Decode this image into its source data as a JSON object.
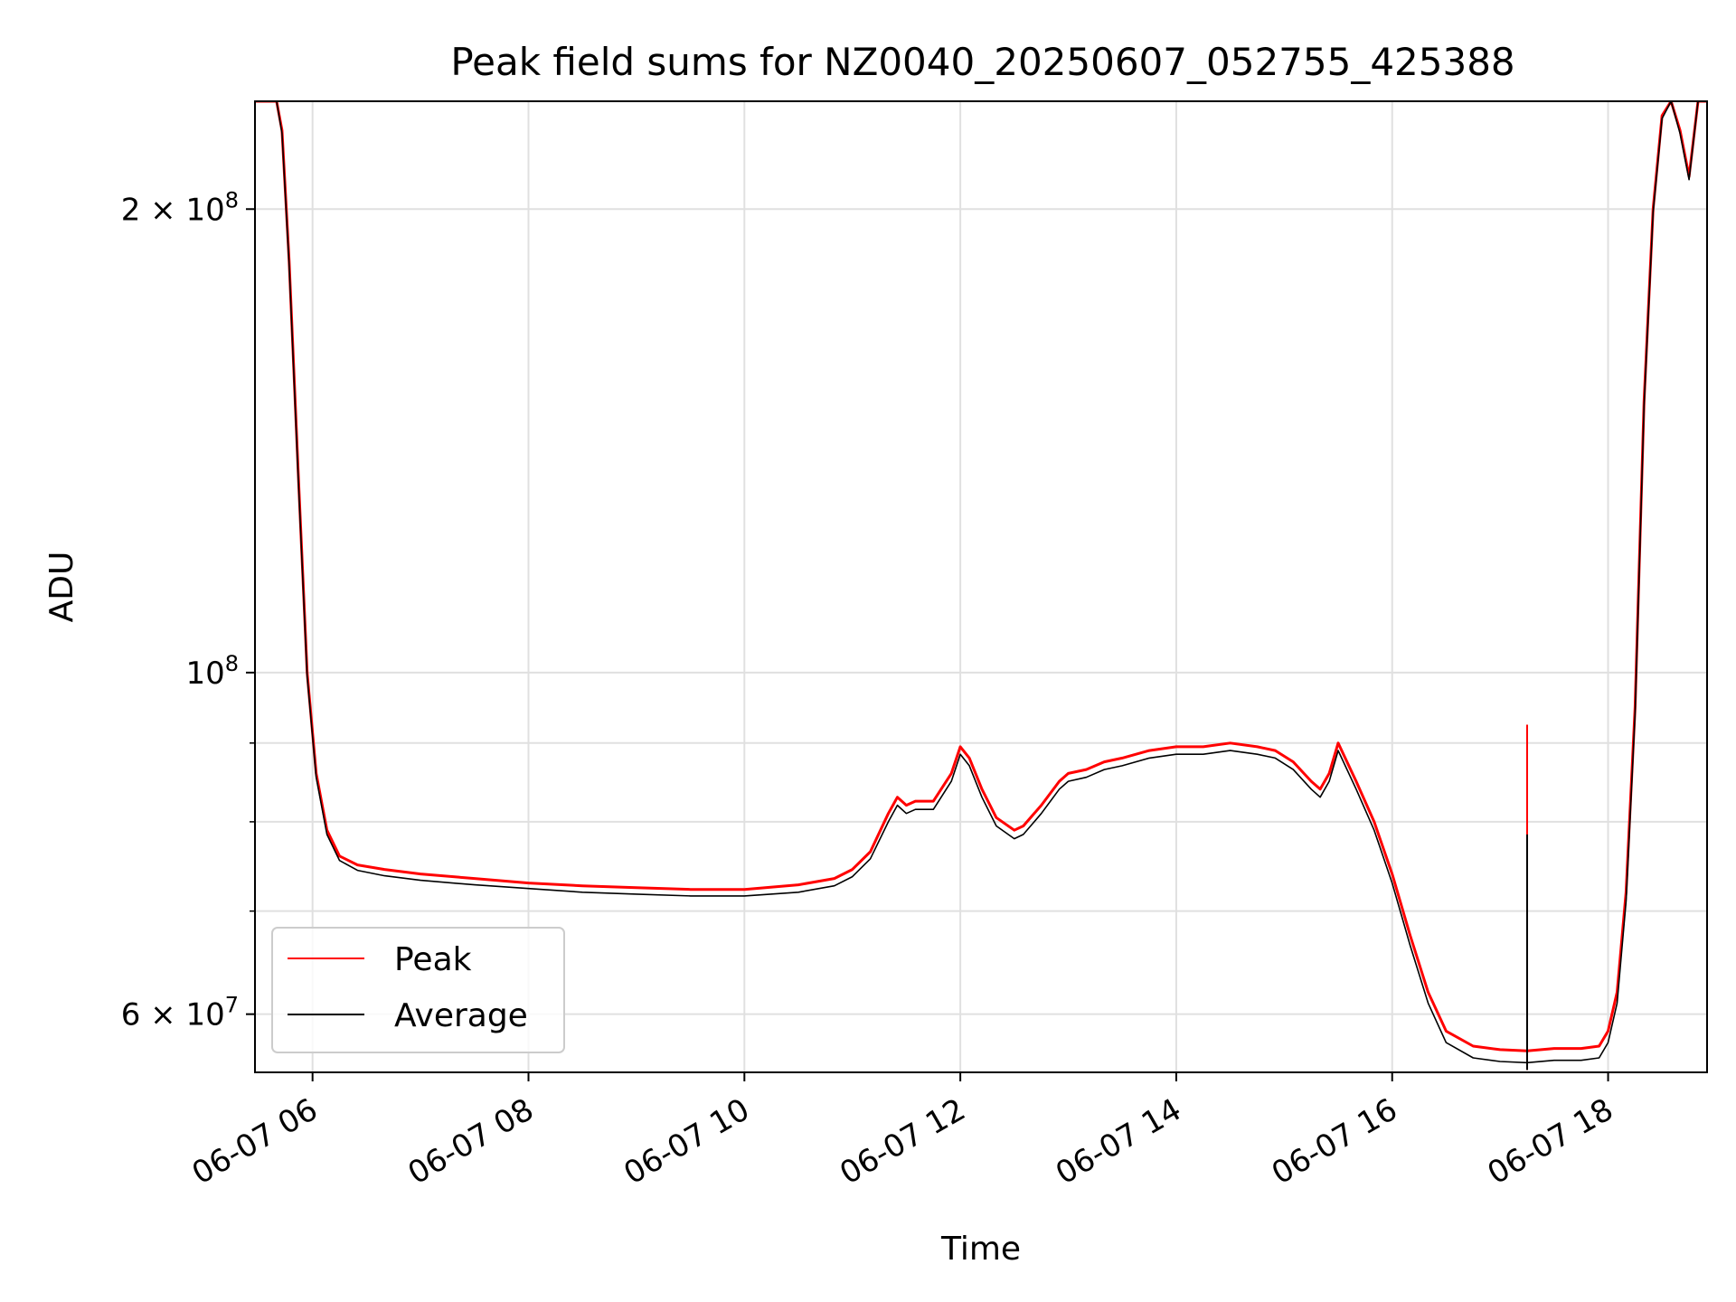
{
  "chart_data": {
    "type": "line",
    "title": "Peak field sums for NZ0040_20250607_052755_425388",
    "xlabel": "Time",
    "ylabel": "ADU",
    "x_tick_labels": [
      "06-07 06",
      "06-07 08",
      "06-07 10",
      "06-07 12",
      "06-07 14",
      "06-07 16",
      "06-07 18"
    ],
    "y_tick_labels": [
      {
        "value": 200000000,
        "base": "2 × 10",
        "exp": "8"
      },
      {
        "value": 100000000,
        "base": "10",
        "exp": "8"
      },
      {
        "value": 60000000,
        "base": "6 × 10",
        "exp": "7"
      }
    ],
    "x_range": [
      "2025-06-07 05:28",
      "2025-06-07 18:55"
    ],
    "y_range": [
      55000000,
      235000000
    ],
    "y_scale": "log",
    "grid": true,
    "legend_position": "lower left",
    "series": [
      {
        "name": "Peak",
        "color": "#ff0000",
        "x": [
          "2025-06-07 05:28",
          "2025-06-07 05:40",
          "2025-06-07 05:43",
          "2025-06-07 05:47",
          "2025-06-07 05:52",
          "2025-06-07 05:57",
          "2025-06-07 06:02",
          "2025-06-07 06:08",
          "2025-06-07 06:15",
          "2025-06-07 06:25",
          "2025-06-07 06:40",
          "2025-06-07 07:00",
          "2025-06-07 07:30",
          "2025-06-07 08:00",
          "2025-06-07 08:30",
          "2025-06-07 09:00",
          "2025-06-07 09:30",
          "2025-06-07 10:00",
          "2025-06-07 10:30",
          "2025-06-07 10:50",
          "2025-06-07 11:00",
          "2025-06-07 11:10",
          "2025-06-07 11:20",
          "2025-06-07 11:25",
          "2025-06-07 11:30",
          "2025-06-07 11:35",
          "2025-06-07 11:45",
          "2025-06-07 11:55",
          "2025-06-07 12:00",
          "2025-06-07 12:05",
          "2025-06-07 12:12",
          "2025-06-07 12:20",
          "2025-06-07 12:30",
          "2025-06-07 12:35",
          "2025-06-07 12:45",
          "2025-06-07 12:55",
          "2025-06-07 13:00",
          "2025-06-07 13:10",
          "2025-06-07 13:20",
          "2025-06-07 13:30",
          "2025-06-07 13:45",
          "2025-06-07 14:00",
          "2025-06-07 14:15",
          "2025-06-07 14:30",
          "2025-06-07 14:45",
          "2025-06-07 14:55",
          "2025-06-07 15:05",
          "2025-06-07 15:15",
          "2025-06-07 15:20",
          "2025-06-07 15:25",
          "2025-06-07 15:30",
          "2025-06-07 15:40",
          "2025-06-07 15:50",
          "2025-06-07 16:00",
          "2025-06-07 16:10",
          "2025-06-07 16:20",
          "2025-06-07 16:30",
          "2025-06-07 16:45",
          "2025-06-07 17:00",
          "2025-06-07 17:15",
          "2025-06-07 17:30",
          "2025-06-07 17:45",
          "2025-06-07 17:55",
          "2025-06-07 18:00",
          "2025-06-07 18:05",
          "2025-06-07 18:10",
          "2025-06-07 18:15",
          "2025-06-07 18:20",
          "2025-06-07 18:25",
          "2025-06-07 18:30",
          "2025-06-07 18:35",
          "2025-06-07 18:40",
          "2025-06-07 18:45",
          "2025-06-07 18:50",
          "2025-06-07 18:55"
        ],
        "y": [
          235000000,
          235000000,
          225000000,
          185000000,
          135000000,
          100000000,
          86000000,
          79000000,
          76000000,
          75000000,
          74500000,
          74000000,
          73500000,
          73000000,
          72700000,
          72500000,
          72300000,
          72300000,
          72800000,
          73500000,
          74500000,
          76500000,
          81000000,
          83000000,
          82000000,
          82500000,
          82500000,
          86000000,
          89500000,
          88000000,
          84000000,
          80500000,
          79000000,
          79500000,
          82000000,
          85000000,
          86000000,
          86500000,
          87500000,
          88000000,
          89000000,
          89500000,
          89500000,
          90000000,
          89500000,
          89000000,
          87500000,
          85000000,
          84000000,
          86000000,
          90000000,
          85000000,
          80000000,
          74000000,
          67500000,
          62000000,
          58500000,
          57200000,
          56900000,
          56800000,
          57000000,
          57000000,
          57200000,
          58500000,
          62000000,
          72000000,
          95000000,
          150000000,
          200000000,
          230000000,
          235000000,
          225000000,
          210000000,
          235000000,
          235000000
        ]
      },
      {
        "name": "Average",
        "color": "#000000",
        "x": [
          "2025-06-07 05:28",
          "2025-06-07 05:40",
          "2025-06-07 05:43",
          "2025-06-07 05:47",
          "2025-06-07 05:52",
          "2025-06-07 05:57",
          "2025-06-07 06:02",
          "2025-06-07 06:08",
          "2025-06-07 06:15",
          "2025-06-07 06:25",
          "2025-06-07 06:40",
          "2025-06-07 07:00",
          "2025-06-07 07:30",
          "2025-06-07 08:00",
          "2025-06-07 08:30",
          "2025-06-07 09:00",
          "2025-06-07 09:30",
          "2025-06-07 10:00",
          "2025-06-07 10:30",
          "2025-06-07 10:50",
          "2025-06-07 11:00",
          "2025-06-07 11:10",
          "2025-06-07 11:20",
          "2025-06-07 11:25",
          "2025-06-07 11:30",
          "2025-06-07 11:35",
          "2025-06-07 11:45",
          "2025-06-07 11:55",
          "2025-06-07 12:00",
          "2025-06-07 12:05",
          "2025-06-07 12:12",
          "2025-06-07 12:20",
          "2025-06-07 12:30",
          "2025-06-07 12:35",
          "2025-06-07 12:45",
          "2025-06-07 12:55",
          "2025-06-07 13:00",
          "2025-06-07 13:10",
          "2025-06-07 13:20",
          "2025-06-07 13:30",
          "2025-06-07 13:45",
          "2025-06-07 14:00",
          "2025-06-07 14:15",
          "2025-06-07 14:30",
          "2025-06-07 14:45",
          "2025-06-07 14:55",
          "2025-06-07 15:05",
          "2025-06-07 15:15",
          "2025-06-07 15:20",
          "2025-06-07 15:25",
          "2025-06-07 15:30",
          "2025-06-07 15:40",
          "2025-06-07 15:50",
          "2025-06-07 16:00",
          "2025-06-07 16:10",
          "2025-06-07 16:20",
          "2025-06-07 16:30",
          "2025-06-07 16:45",
          "2025-06-07 17:00",
          "2025-06-07 17:15",
          "2025-06-07 17:30",
          "2025-06-07 17:45",
          "2025-06-07 17:55",
          "2025-06-07 18:00",
          "2025-06-07 18:05",
          "2025-06-07 18:10",
          "2025-06-07 18:15",
          "2025-06-07 18:20",
          "2025-06-07 18:25",
          "2025-06-07 18:30",
          "2025-06-07 18:35",
          "2025-06-07 18:40",
          "2025-06-07 18:45",
          "2025-06-07 18:50",
          "2025-06-07 18:55"
        ],
        "y": [
          235000000,
          235000000,
          224000000,
          184000000,
          134000000,
          99500000,
          85500000,
          78500000,
          75500000,
          74400000,
          73800000,
          73300000,
          72800000,
          72400000,
          72000000,
          71800000,
          71600000,
          71600000,
          72000000,
          72700000,
          73700000,
          75700000,
          80000000,
          82000000,
          81000000,
          81500000,
          81500000,
          85000000,
          88500000,
          87000000,
          83000000,
          79500000,
          78000000,
          78500000,
          81000000,
          84000000,
          85000000,
          85500000,
          86500000,
          87000000,
          88000000,
          88500000,
          88500000,
          89000000,
          88500000,
          88000000,
          86500000,
          84000000,
          83000000,
          85000000,
          89000000,
          84000000,
          79000000,
          73000000,
          66500000,
          61000000,
          57500000,
          56200000,
          55900000,
          55800000,
          56000000,
          56000000,
          56200000,
          57500000,
          61000000,
          71000000,
          94000000,
          149000000,
          199000000,
          229000000,
          235000000,
          224000000,
          209000000,
          235000000,
          235000000
        ]
      }
    ],
    "spike": {
      "x": "2025-06-07 17:15",
      "peak": 92500000,
      "average": 78500000,
      "bottom": 55200000
    }
  }
}
